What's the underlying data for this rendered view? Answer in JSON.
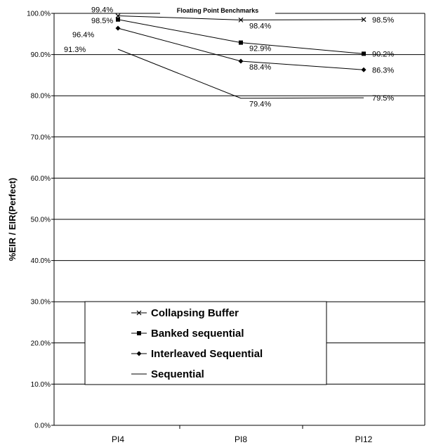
{
  "chart_data": {
    "type": "line",
    "title": "Floating Point Benchmarks",
    "xlabel": "",
    "ylabel": "%EIR / EIR(Perfect)",
    "categories": [
      "PI4",
      "PI8",
      "PI12"
    ],
    "ylim": [
      0,
      100
    ],
    "yticks": [
      "0.0%",
      "10.0%",
      "20.0%",
      "30.0%",
      "40.0%",
      "50.0%",
      "60.0%",
      "70.0%",
      "80.0%",
      "90.0%",
      "100.0%"
    ],
    "grid": true,
    "legend_position": "center-bottom",
    "series": [
      {
        "name": "Collapsing Buffer",
        "marker": "x",
        "values": [
          99.4,
          98.4,
          98.5
        ],
        "labels": [
          "99.4%",
          "98.4%",
          "98.5%"
        ]
      },
      {
        "name": "Banked sequential",
        "marker": "square",
        "values": [
          98.5,
          92.9,
          90.2
        ],
        "labels": [
          "98.5%",
          "92.9%",
          "90.2%"
        ]
      },
      {
        "name": "Interleaved Sequential",
        "marker": "diamond",
        "values": [
          96.4,
          88.4,
          86.3
        ],
        "labels": [
          "96.4%",
          "88.4%",
          "86.3%"
        ]
      },
      {
        "name": "Sequential",
        "marker": "none",
        "values": [
          91.3,
          79.4,
          79.5
        ],
        "labels": [
          "91.3%",
          "79.4%",
          "79.5%"
        ]
      }
    ]
  }
}
